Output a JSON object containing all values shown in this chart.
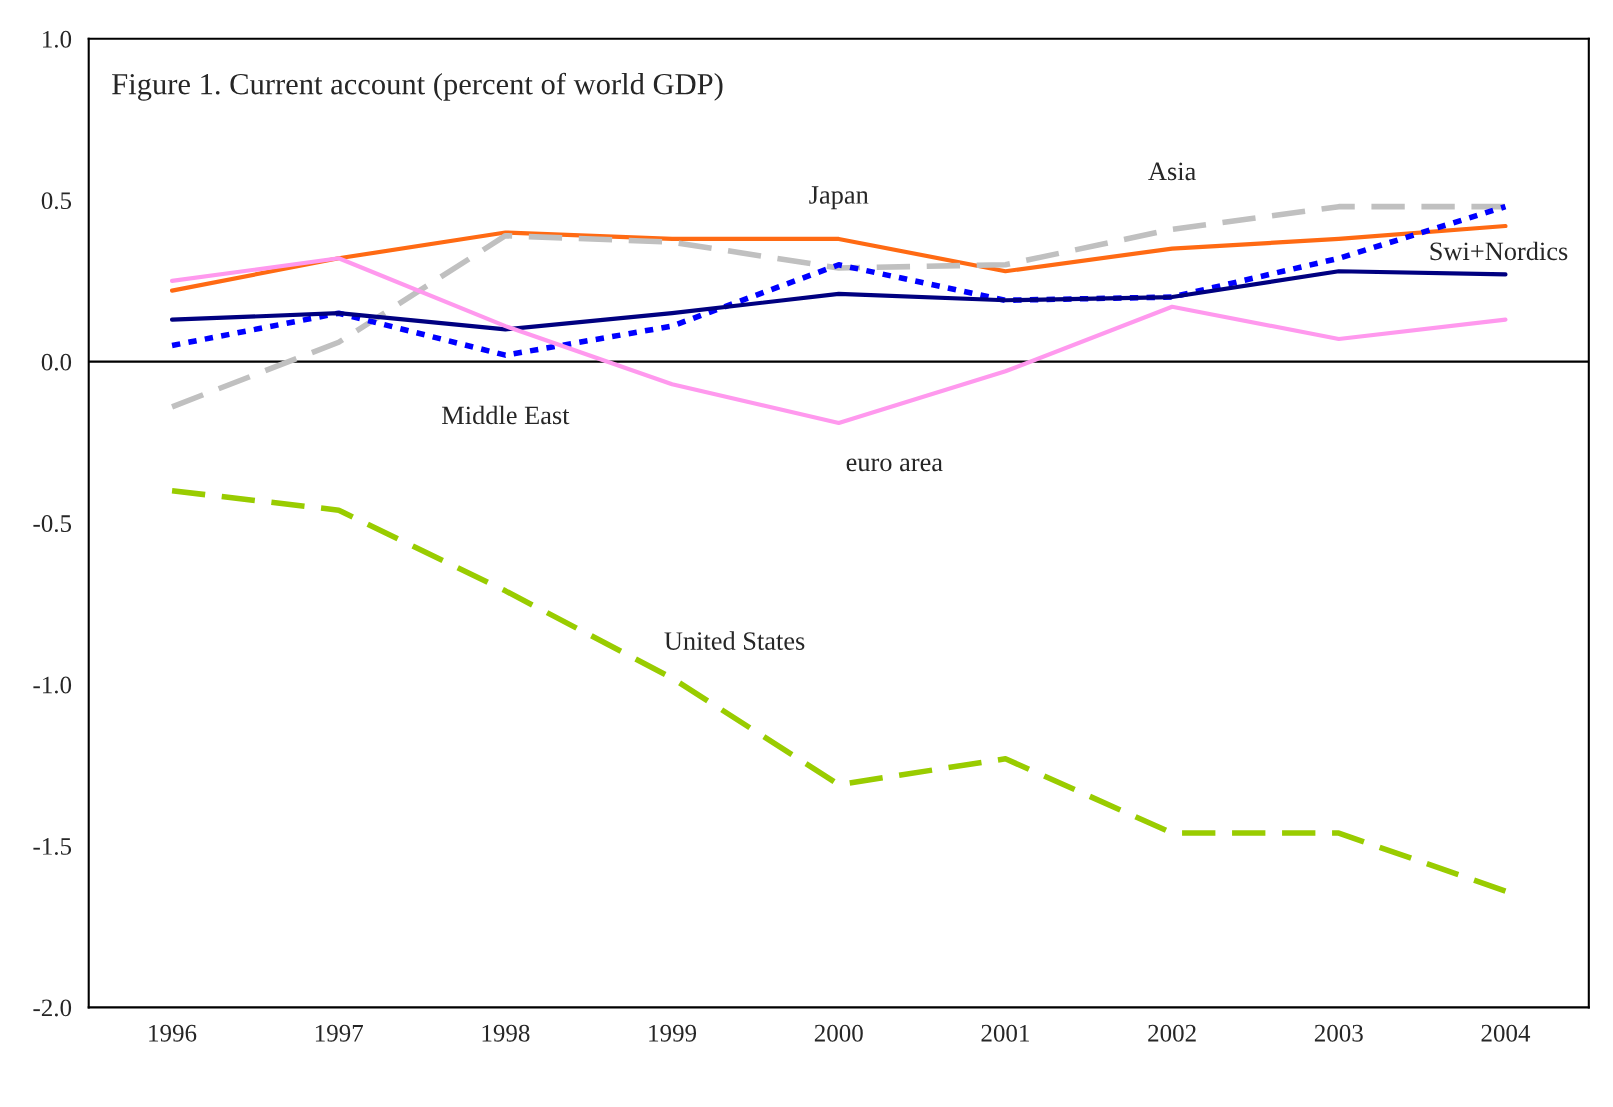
{
  "chart_data": {
    "type": "line",
    "title": "Figure 1. Current account (percent of world GDP)",
    "categories": [
      "1996",
      "1997",
      "1998",
      "1999",
      "2000",
      "2001",
      "2002",
      "2003",
      "2004"
    ],
    "series": [
      {
        "name": "Japan",
        "color": "#ff6a13",
        "line_style": "solid",
        "values": [
          0.22,
          0.32,
          0.4,
          0.38,
          0.38,
          0.28,
          0.35,
          0.38,
          0.42
        ]
      },
      {
        "name": "Asia",
        "color": "#c0c0c0",
        "line_style": "dashed",
        "values": [
          -0.14,
          0.06,
          0.39,
          0.37,
          0.29,
          0.3,
          0.41,
          0.48,
          0.48
        ]
      },
      {
        "name": "Middle East",
        "color": "#0000ff",
        "line_style": "dotted",
        "values": [
          0.05,
          0.15,
          0.02,
          0.11,
          0.3,
          0.19,
          0.2,
          0.32,
          0.48
        ]
      },
      {
        "name": "Swi+Nordics",
        "color": "#000080",
        "line_style": "solid",
        "values": [
          0.13,
          0.15,
          0.1,
          0.15,
          0.21,
          0.19,
          0.2,
          0.28,
          0.27
        ]
      },
      {
        "name": "euro area",
        "color": "#ff99ee",
        "line_style": "solid",
        "values": [
          0.25,
          0.32,
          0.11,
          -0.07,
          -0.19,
          -0.03,
          0.17,
          0.07,
          0.13
        ]
      },
      {
        "name": "United States",
        "color": "#99cc00",
        "line_style": "dashed",
        "values": [
          -0.4,
          -0.46,
          -0.71,
          -0.98,
          -1.31,
          -1.23,
          -1.46,
          -1.46,
          -1.64
        ]
      }
    ],
    "ref_lines": [
      {
        "axis": "y",
        "value": 0,
        "color": "#000000"
      }
    ],
    "ylim": [
      -2.0,
      1.0
    ],
    "yticks": [
      {
        "value": -2.0,
        "label": "-2.0"
      },
      {
        "value": -1.5,
        "label": "-1.5"
      },
      {
        "value": -1.0,
        "label": "-1.0"
      },
      {
        "value": -0.5,
        "label": "-0.5"
      },
      {
        "value": 0.0,
        "label": "0.0"
      },
      {
        "value": 0.5,
        "label": "0.5"
      },
      {
        "value": 1.0,
        "label": "1.0"
      }
    ],
    "grid": false,
    "legend": false
  }
}
